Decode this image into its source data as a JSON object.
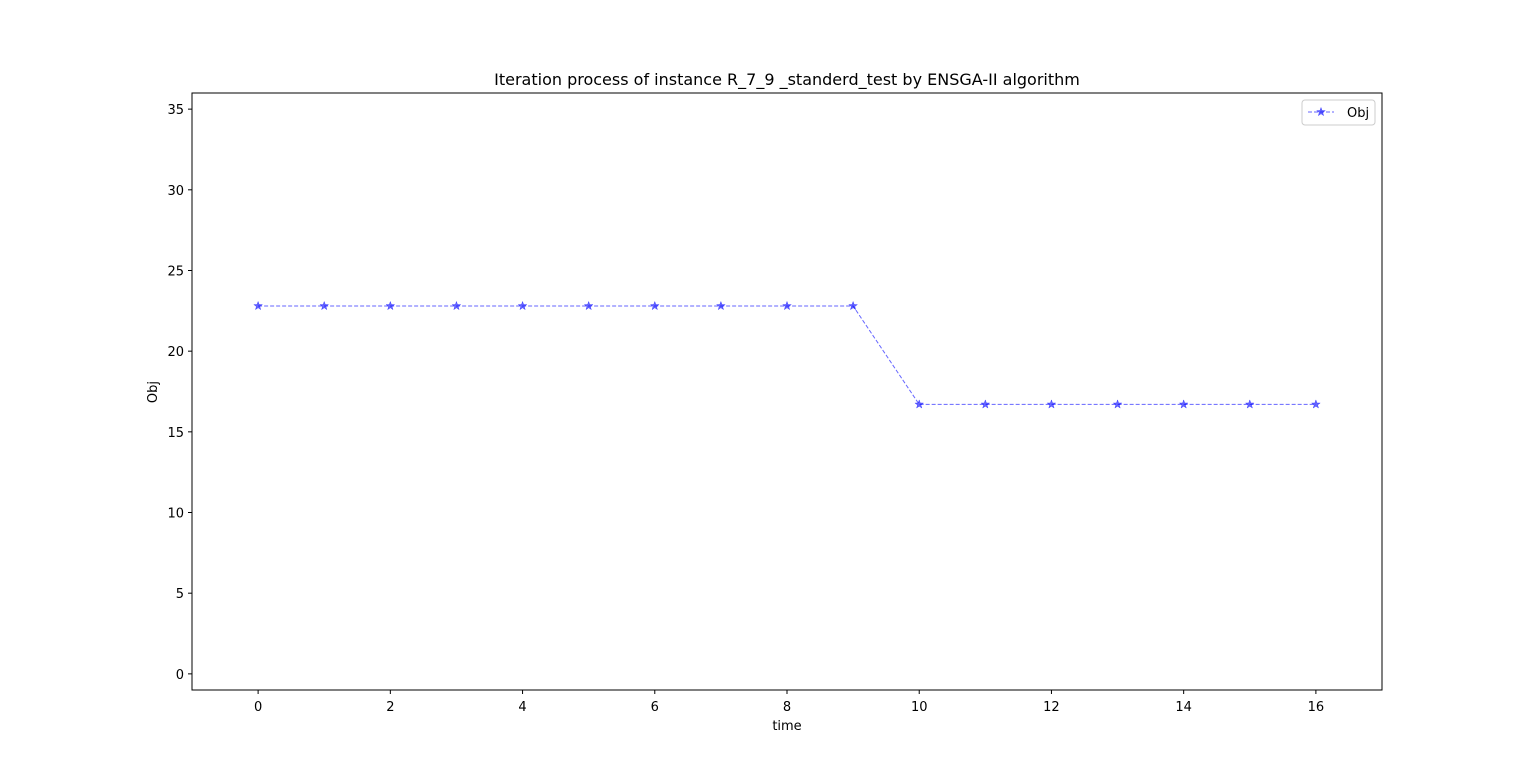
{
  "chart_data": {
    "type": "line",
    "title": "Iteration process of instance R_7_9 _standerd_test by ENSGA-II algorithm",
    "xlabel": "time",
    "ylabel": "Obj",
    "xlim": [
      -1,
      17
    ],
    "ylim": [
      -1,
      36
    ],
    "xticks": [
      0,
      2,
      4,
      6,
      8,
      10,
      12,
      14,
      16
    ],
    "yticks": [
      0,
      5,
      10,
      15,
      20,
      25,
      30,
      35
    ],
    "grid": false,
    "legend_position": "top-right",
    "series": [
      {
        "name": "Obj",
        "color": "#0000ff",
        "line_style": "dashed",
        "marker": "star",
        "x": [
          0,
          1,
          2,
          3,
          4,
          5,
          6,
          7,
          8,
          9,
          10,
          11,
          12,
          13,
          14,
          15,
          16
        ],
        "y": [
          22.8,
          22.8,
          22.8,
          22.8,
          22.8,
          22.8,
          22.8,
          22.8,
          22.8,
          22.8,
          16.7,
          16.7,
          16.7,
          16.7,
          16.7,
          16.7,
          16.7
        ]
      }
    ]
  }
}
